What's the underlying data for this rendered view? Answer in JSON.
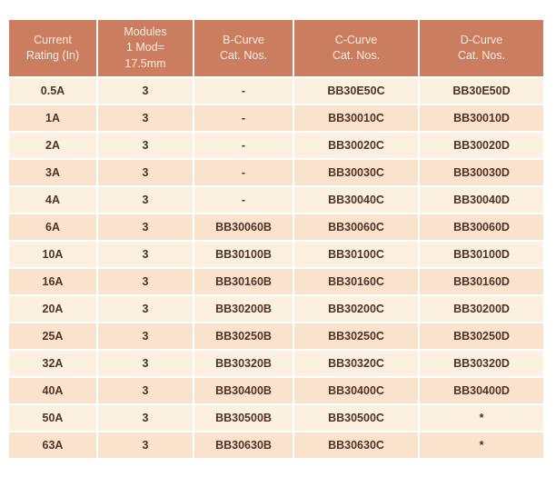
{
  "colors": {
    "header_bg": "#CB7D5F",
    "header_text": "#F7EDE0",
    "row_light": "#FCF1E0",
    "row_dark": "#FAE3CC",
    "cell_text": "#503228",
    "page_bg": "#FFFFFF"
  },
  "table": {
    "columns": [
      "Current\nRating (In)",
      "Modules\n1 Mod=\n17.5mm",
      "B-Curve\nCat. Nos.",
      "C-Curve\nCat. Nos.",
      "D-Curve\nCat. Nos."
    ],
    "rows": [
      [
        "0.5A",
        "3",
        "-",
        "BB30E50C",
        "BB30E50D"
      ],
      [
        "1A",
        "3",
        "-",
        "BB30010C",
        "BB30010D"
      ],
      [
        "2A",
        "3",
        "-",
        "BB30020C",
        "BB30020D"
      ],
      [
        "3A",
        "3",
        "-",
        "BB30030C",
        "BB30030D"
      ],
      [
        "4A",
        "3",
        "-",
        "BB30040C",
        "BB30040D"
      ],
      [
        "6A",
        "3",
        "BB30060B",
        "BB30060C",
        "BB30060D"
      ],
      [
        "10A",
        "3",
        "BB30100B",
        "BB30100C",
        "BB30100D"
      ],
      [
        "16A",
        "3",
        "BB30160B",
        "BB30160C",
        "BB30160D"
      ],
      [
        "20A",
        "3",
        "BB30200B",
        "BB30200C",
        "BB30200D"
      ],
      [
        "25A",
        "3",
        "BB30250B",
        "BB30250C",
        "BB30250D"
      ],
      [
        "32A",
        "3",
        "BB30320B",
        "BB30320C",
        "BB30320D"
      ],
      [
        "40A",
        "3",
        "BB30400B",
        "BB30400C",
        "BB30400D"
      ],
      [
        "50A",
        "3",
        "BB30500B",
        "BB30500C",
        "*"
      ],
      [
        "63A",
        "3",
        "BB30630B",
        "BB30630C",
        "*"
      ]
    ]
  }
}
